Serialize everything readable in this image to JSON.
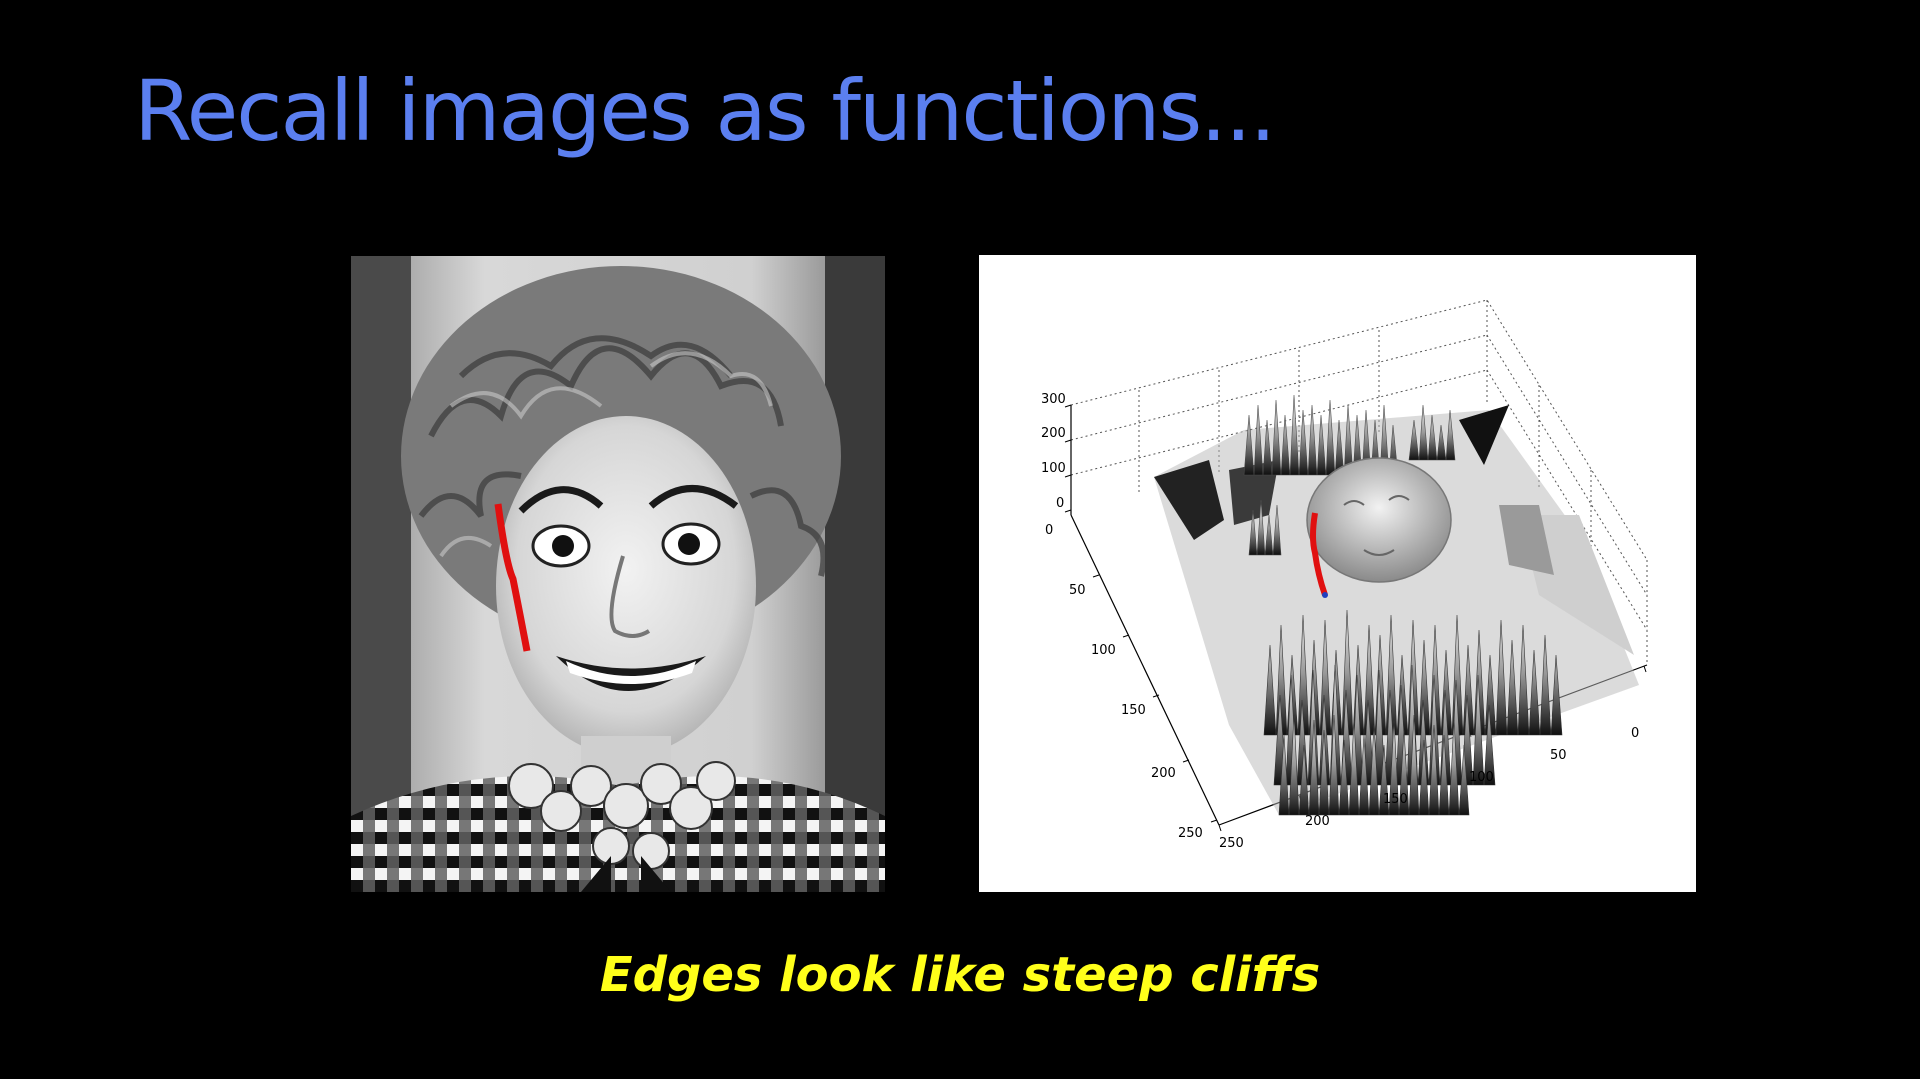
{
  "slide": {
    "title": "Recall images as functions...",
    "caption": "Edges look like steep cliffs",
    "colors": {
      "background": "#000000",
      "title": "#5b7ff0",
      "caption": "#ffff1a",
      "edge_marker": "#e01010"
    }
  },
  "figures": {
    "photo": {
      "icon": "grayscale-portrait-photo-with-red-edge-line"
    },
    "surface_plot": {
      "icon": "3d-intensity-surface-plot",
      "z_ticks": [
        "300",
        "200",
        "100",
        "0"
      ],
      "y_ticks": [
        "0",
        "50",
        "100",
        "150",
        "200",
        "250"
      ],
      "x_ticks": [
        "250",
        "200",
        "150",
        "100",
        "50",
        "0"
      ]
    }
  }
}
